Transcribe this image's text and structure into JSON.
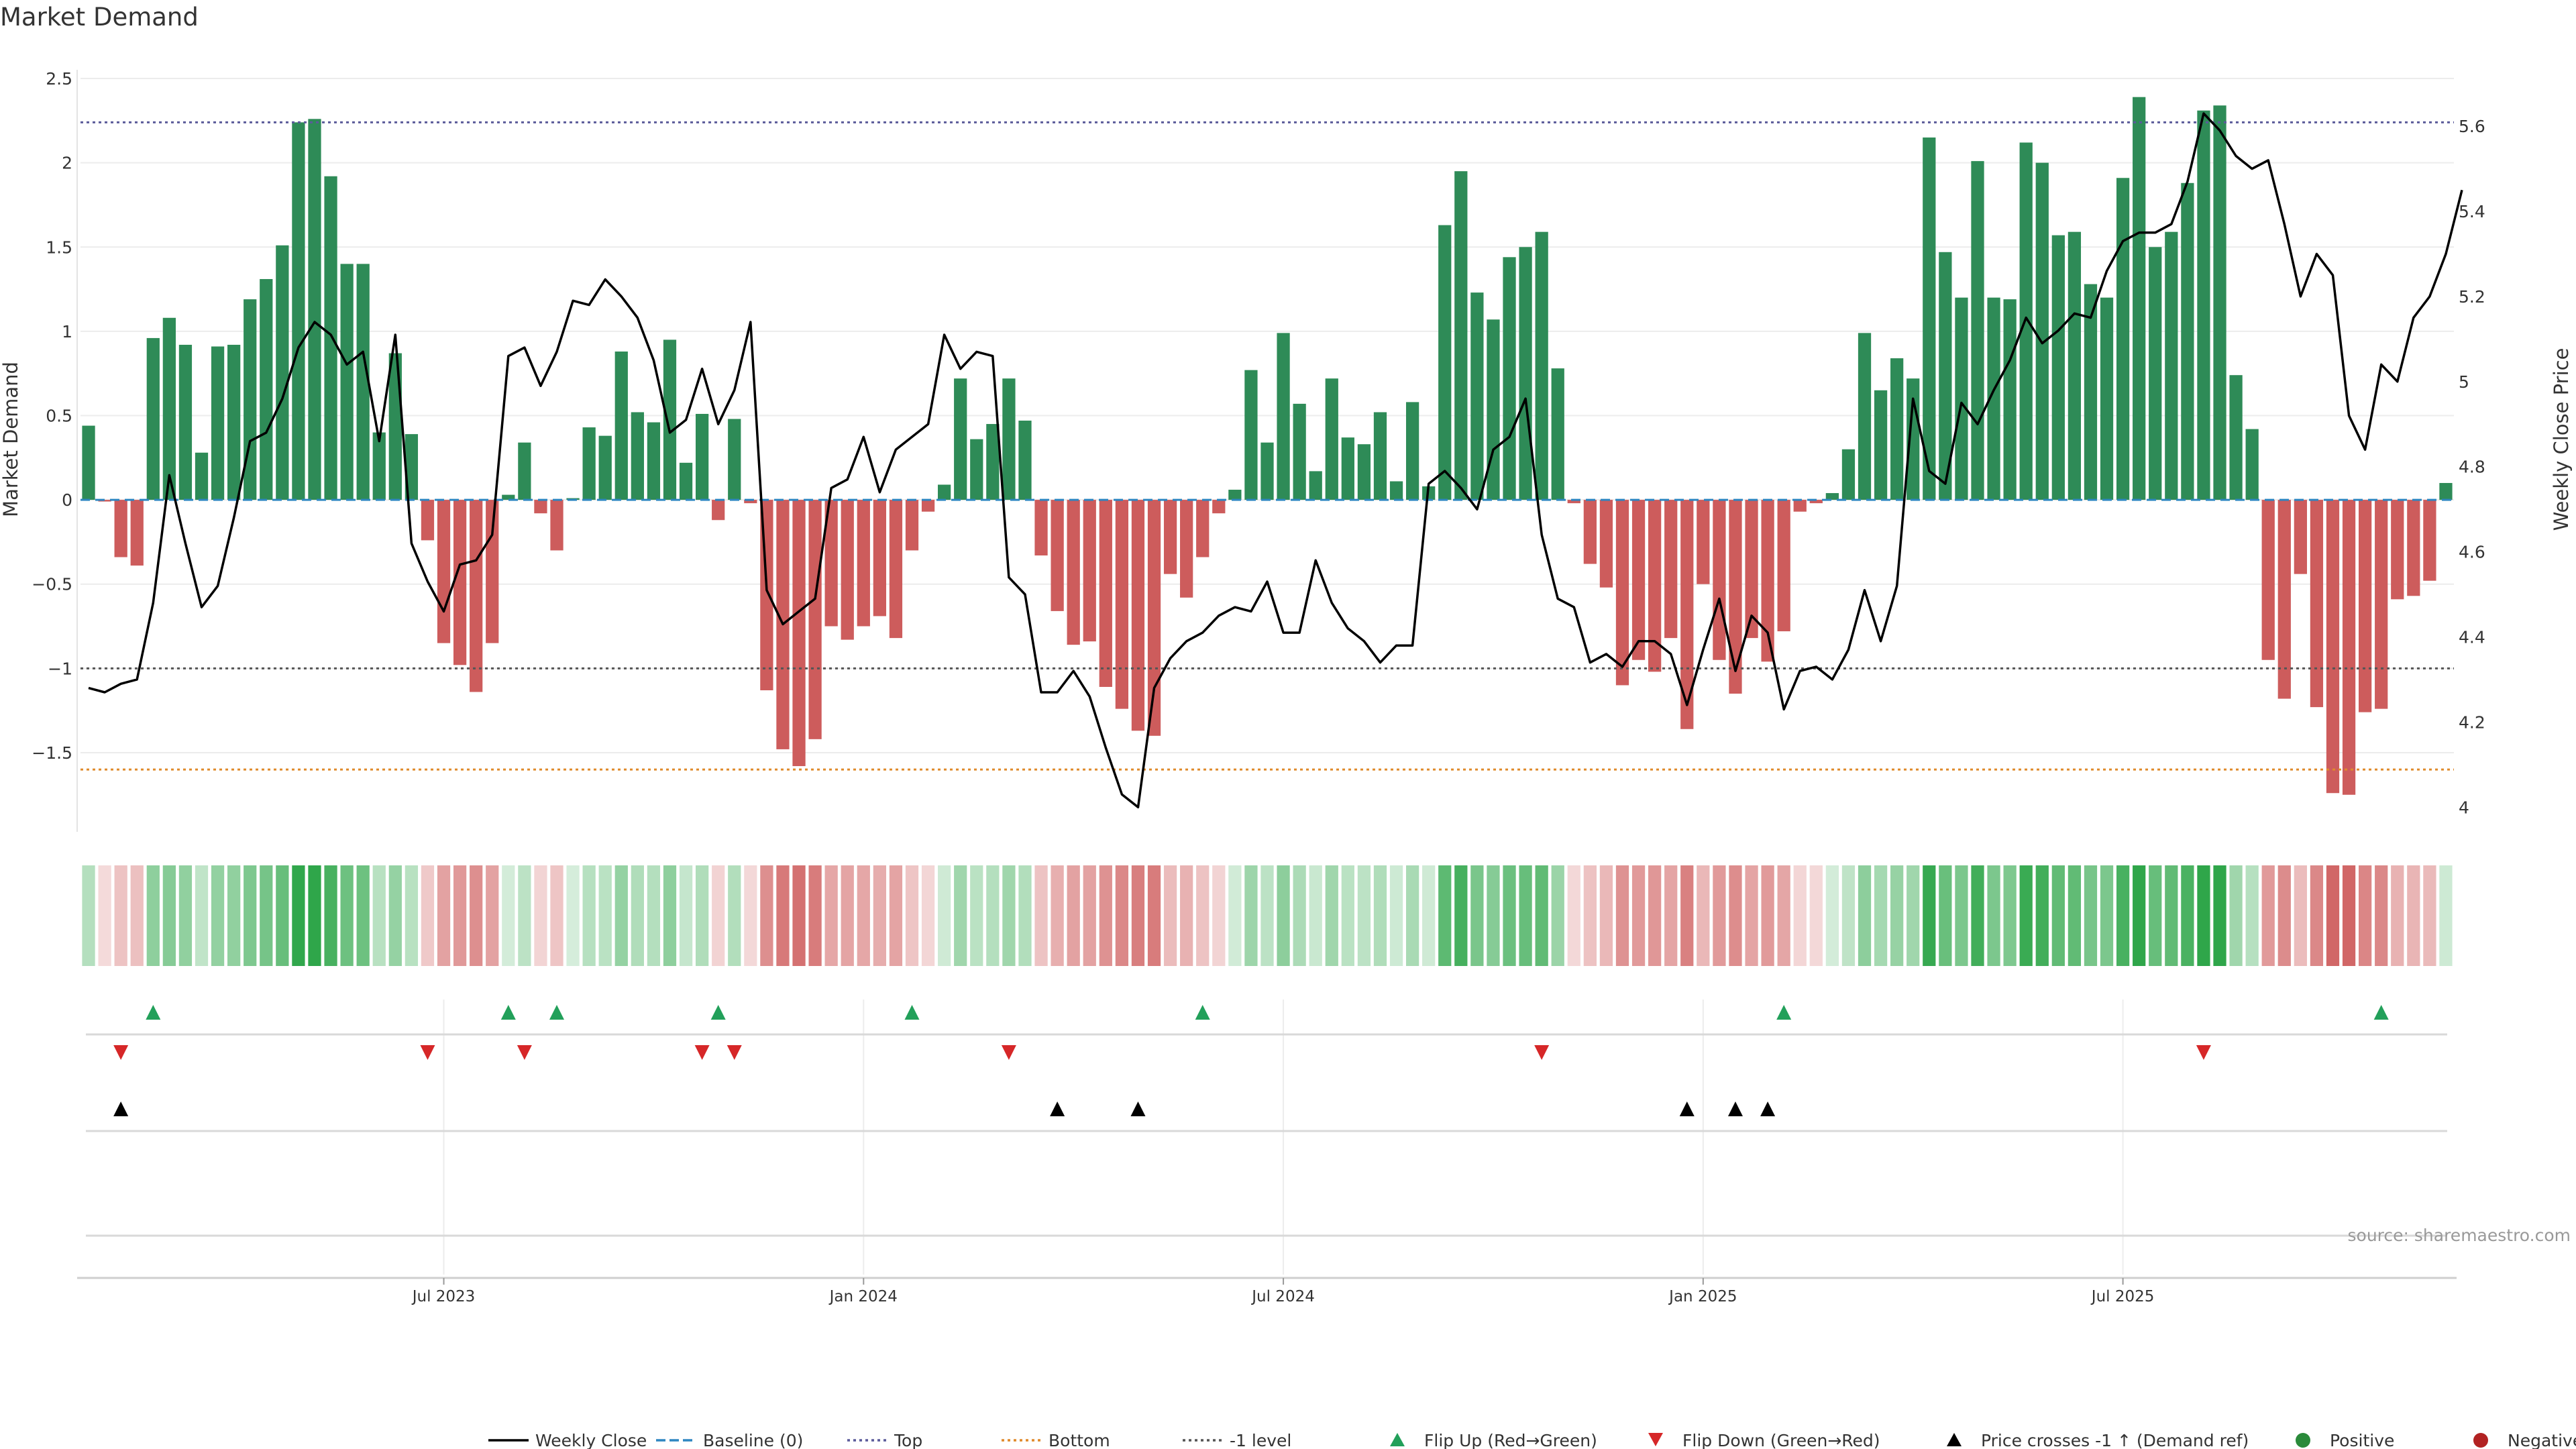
{
  "chart_data": {
    "type": "bar",
    "title": "Market Demand",
    "ylabel": "Market Demand",
    "y2label": "Weekly Close Price",
    "ylim": [
      -1.95,
      2.52
    ],
    "y2lim": [
      3.95,
      5.72
    ],
    "yticks": [
      {
        "v": 2.5,
        "label": "2.5"
      },
      {
        "v": 2,
        "label": "2"
      },
      {
        "v": 1.5,
        "label": "1.5"
      },
      {
        "v": 1,
        "label": "1"
      },
      {
        "v": 0.5,
        "label": "0.5"
      },
      {
        "v": 0,
        "label": "0"
      },
      {
        "v": -0.5,
        "label": "−0.5"
      },
      {
        "v": -1,
        "label": "−1"
      },
      {
        "v": -1.5,
        "label": "−1.5"
      }
    ],
    "y2ticks": [
      {
        "v": 5.6,
        "label": "5.6"
      },
      {
        "v": 5.4,
        "label": "5.4"
      },
      {
        "v": 5.2,
        "label": "5.2"
      },
      {
        "v": 5.0,
        "label": "5"
      },
      {
        "v": 4.8,
        "label": "4.8"
      },
      {
        "v": 4.6,
        "label": "4.6"
      },
      {
        "v": 4.4,
        "label": "4.4"
      },
      {
        "v": 4.2,
        "label": "4.2"
      },
      {
        "v": 4.0,
        "label": "4"
      }
    ],
    "xticks": [
      {
        "week": 22,
        "label": "Jul 2023"
      },
      {
        "week": 48,
        "label": "Jan 2024"
      },
      {
        "week": 74,
        "label": "Jul 2024"
      },
      {
        "week": 100,
        "label": "Jan 2025"
      },
      {
        "week": 126,
        "label": "Jul 2025"
      }
    ],
    "levels": {
      "top": 2.24,
      "bottom": -1.6,
      "minus1": -1.0
    },
    "demand": [
      0.44,
      -0.01,
      -0.34,
      -0.39,
      0.96,
      1.08,
      0.92,
      0.28,
      0.91,
      0.92,
      1.19,
      1.31,
      1.51,
      2.24,
      2.26,
      1.92,
      1.4,
      1.4,
      0.4,
      0.87,
      0.39,
      -0.24,
      -0.85,
      -0.98,
      -1.14,
      -0.85,
      0.03,
      0.34,
      -0.08,
      -0.3,
      0.01,
      0.43,
      0.38,
      0.88,
      0.52,
      0.46,
      0.95,
      0.22,
      0.51,
      -0.12,
      0.48,
      -0.02,
      -1.13,
      -1.48,
      -1.58,
      -1.42,
      -0.75,
      -0.83,
      -0.75,
      -0.69,
      -0.82,
      -0.3,
      -0.07,
      0.09,
      0.72,
      0.36,
      0.45,
      0.72,
      0.47,
      -0.33,
      -0.66,
      -0.86,
      -0.84,
      -1.11,
      -1.24,
      -1.37,
      -1.4,
      -0.44,
      -0.58,
      -0.34,
      -0.08,
      0.06,
      0.77,
      0.34,
      0.99,
      0.57,
      0.17,
      0.72,
      0.37,
      0.33,
      0.52,
      0.11,
      0.58,
      0.08,
      1.63,
      1.95,
      1.23,
      1.07,
      1.44,
      1.5,
      1.59,
      0.78,
      -0.02,
      -0.38,
      -0.52,
      -1.1,
      -0.95,
      -1.02,
      -0.82,
      -1.36,
      -0.5,
      -0.95,
      -1.15,
      -0.82,
      -0.96,
      -0.78,
      -0.07,
      -0.02,
      0.04,
      0.3,
      0.99,
      0.65,
      0.84,
      0.72,
      2.15,
      1.47,
      1.2,
      2.01,
      1.2,
      1.19,
      2.12,
      2.0,
      1.57,
      1.59,
      1.28,
      1.2,
      1.91,
      2.39,
      1.5,
      1.59,
      1.88,
      2.31,
      2.34,
      0.74,
      0.42,
      -0.95,
      -1.18,
      -0.44,
      -1.23,
      -1.74,
      -1.75,
      -1.26,
      -1.24,
      -0.59,
      -0.57,
      -0.48,
      0.1
    ],
    "price": [
      4.28,
      4.27,
      4.29,
      4.3,
      4.48,
      4.78,
      4.62,
      4.47,
      4.52,
      4.68,
      4.86,
      4.88,
      4.96,
      5.08,
      5.14,
      5.11,
      5.04,
      5.07,
      4.86,
      5.11,
      4.62,
      4.53,
      4.46,
      4.57,
      4.58,
      4.64,
      5.06,
      5.08,
      4.99,
      5.07,
      5.19,
      5.18,
      5.24,
      5.2,
      5.15,
      5.05,
      4.88,
      4.91,
      5.03,
      4.9,
      4.98,
      5.14,
      4.51,
      4.43,
      4.46,
      4.49,
      4.75,
      4.77,
      4.87,
      4.74,
      4.84,
      4.87,
      4.9,
      5.11,
      5.03,
      5.07,
      5.06,
      4.54,
      4.5,
      4.27,
      4.27,
      4.32,
      4.26,
      4.14,
      4.03,
      4.0,
      4.28,
      4.35,
      4.39,
      4.41,
      4.45,
      4.47,
      4.46,
      4.53,
      4.41,
      4.41,
      4.58,
      4.48,
      4.42,
      4.39,
      4.34,
      4.38,
      4.38,
      4.76,
      4.79,
      4.75,
      4.7,
      4.84,
      4.87,
      4.96,
      4.64,
      4.49,
      4.47,
      4.34,
      4.36,
      4.33,
      4.39,
      4.39,
      4.36,
      4.24,
      4.37,
      4.49,
      4.32,
      4.45,
      4.41,
      4.23,
      4.32,
      4.33,
      4.3,
      4.37,
      4.51,
      4.39,
      4.52,
      4.96,
      4.79,
      4.76,
      4.95,
      4.9,
      4.98,
      5.05,
      5.15,
      5.09,
      5.12,
      5.16,
      5.15,
      5.26,
      5.33,
      5.35,
      5.35,
      5.37,
      5.47,
      5.63,
      5.59,
      5.53,
      5.5,
      5.52,
      5.37,
      5.2,
      5.3,
      5.25,
      4.92,
      4.84,
      5.04,
      5.0,
      5.15,
      5.2,
      5.3,
      5.45
    ],
    "flip_up_weeks": [
      4,
      26,
      29,
      39,
      51,
      69,
      105,
      142
    ],
    "flip_down_weeks": [
      2,
      21,
      27,
      38,
      40,
      57,
      90,
      131
    ],
    "price_cross_weeks": [
      2,
      60,
      65,
      99,
      102,
      104
    ],
    "legend": [
      {
        "key": "weekly-close",
        "label": "Weekly Close",
        "kind": "line-solid",
        "color": "#000000"
      },
      {
        "key": "baseline",
        "label": "Baseline (0)",
        "kind": "line-dash",
        "color": "#2e86c1"
      },
      {
        "key": "top",
        "label": "Top",
        "kind": "line-dot",
        "color": "#5b5b9a"
      },
      {
        "key": "bottom",
        "label": "Bottom",
        "kind": "line-dot",
        "color": "#e08a2b"
      },
      {
        "key": "minus1-level",
        "label": "-1 level",
        "kind": "line-dot",
        "color": "#555555"
      },
      {
        "key": "flip-up",
        "label": "Flip Up (Red→Green)",
        "kind": "tri-up",
        "color": "#22a05a"
      },
      {
        "key": "flip-down",
        "label": "Flip Down (Green→Red)",
        "kind": "tri-down",
        "color": "#d62728"
      },
      {
        "key": "price-cross",
        "label": "Price crosses -1 ↑ (Demand ref)",
        "kind": "tri-up",
        "color": "#000000"
      },
      {
        "key": "positive",
        "label": "Positive",
        "kind": "dot",
        "color": "#2a8a3a"
      },
      {
        "key": "negative",
        "label": "Negative",
        "kind": "dot",
        "color": "#b22222"
      }
    ],
    "source": "source: sharemaestro.com"
  },
  "colors": {
    "bar_positive": "#2e8b57",
    "bar_negative": "#cd5c5c",
    "strip_positive": "#2fa64a",
    "strip_negative": "#c74545",
    "flip_up": "#22a05a",
    "flip_down": "#d62728",
    "price_line": "#000000",
    "grid": "#ececec"
  }
}
